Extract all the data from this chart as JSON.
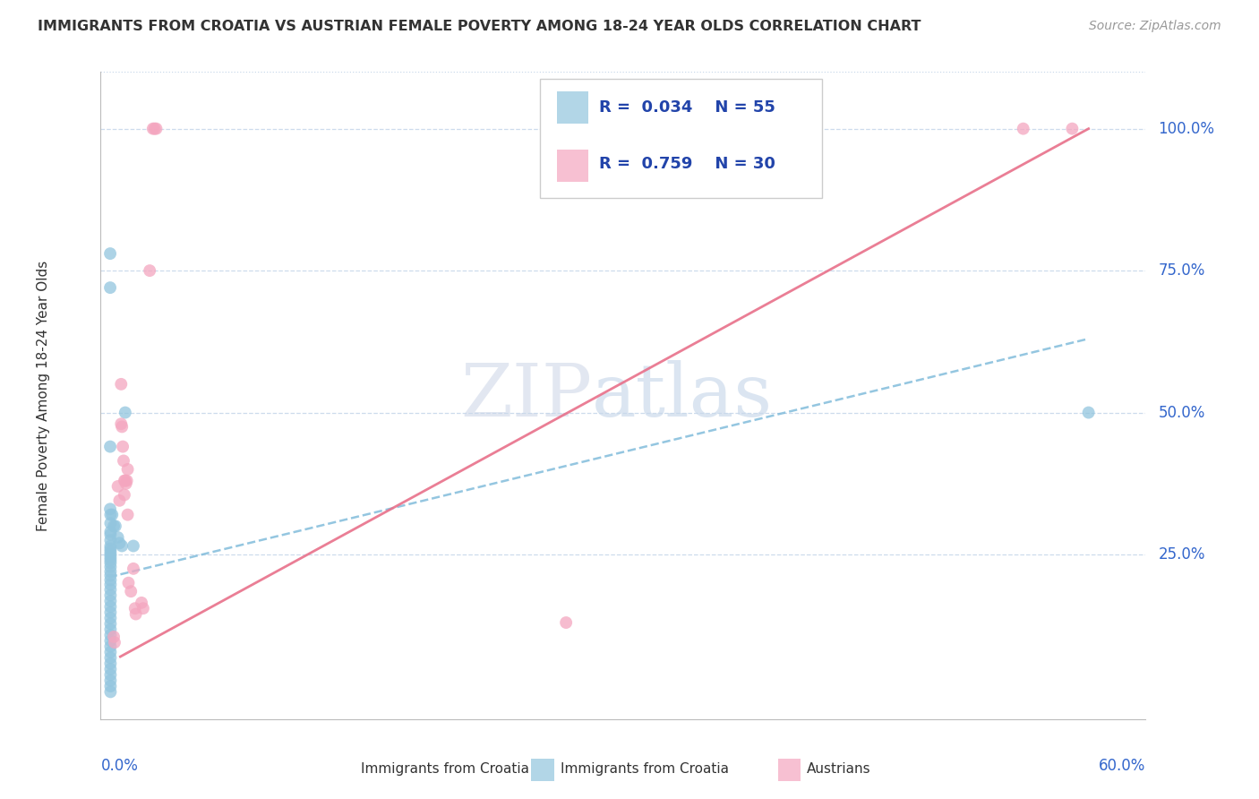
{
  "title": "IMMIGRANTS FROM CROATIA VS AUSTRIAN FEMALE POVERTY AMONG 18-24 YEAR OLDS CORRELATION CHART",
  "source": "Source: ZipAtlas.com",
  "xlabel_bottom_left": "0.0%",
  "xlabel_bottom_right": "60.0%",
  "ylabel": "Female Poverty Among 18-24 Year Olds",
  "ytick_labels": [
    "100.0%",
    "75.0%",
    "50.0%",
    "25.0%"
  ],
  "ytick_values": [
    1.0,
    0.75,
    0.5,
    0.25
  ],
  "watermark_zip": "ZIP",
  "watermark_atlas": "atlas",
  "blue_color": "#92c5de",
  "pink_color": "#f4a6bf",
  "blue_line_color": "#7ab8d9",
  "pink_line_color": "#e8708a",
  "legend_text_color": "#3355aa",
  "legend_label_color": "#222222",
  "blue_scatter": [
    [
      0.0008,
      0.78
    ],
    [
      0.0008,
      0.72
    ],
    [
      0.0008,
      0.44
    ],
    [
      0.0008,
      0.33
    ],
    [
      0.001,
      0.32
    ],
    [
      0.001,
      0.305
    ],
    [
      0.001,
      0.29
    ],
    [
      0.001,
      0.285
    ],
    [
      0.001,
      0.275
    ],
    [
      0.001,
      0.265
    ],
    [
      0.001,
      0.26
    ],
    [
      0.001,
      0.255
    ],
    [
      0.001,
      0.25
    ],
    [
      0.001,
      0.245
    ],
    [
      0.001,
      0.24
    ],
    [
      0.001,
      0.235
    ],
    [
      0.001,
      0.228
    ],
    [
      0.001,
      0.22
    ],
    [
      0.001,
      0.213
    ],
    [
      0.001,
      0.205
    ],
    [
      0.001,
      0.197
    ],
    [
      0.001,
      0.188
    ],
    [
      0.001,
      0.178
    ],
    [
      0.001,
      0.168
    ],
    [
      0.001,
      0.158
    ],
    [
      0.001,
      0.148
    ],
    [
      0.001,
      0.138
    ],
    [
      0.001,
      0.128
    ],
    [
      0.001,
      0.118
    ],
    [
      0.001,
      0.108
    ],
    [
      0.001,
      0.098
    ],
    [
      0.001,
      0.088
    ],
    [
      0.001,
      0.078
    ],
    [
      0.001,
      0.068
    ],
    [
      0.001,
      0.058
    ],
    [
      0.001,
      0.048
    ],
    [
      0.001,
      0.038
    ],
    [
      0.001,
      0.028
    ],
    [
      0.001,
      0.018
    ],
    [
      0.001,
      0.008
    ],
    [
      0.002,
      0.32
    ],
    [
      0.003,
      0.3
    ],
    [
      0.004,
      0.3
    ],
    [
      0.0055,
      0.28
    ],
    [
      0.0065,
      0.27
    ],
    [
      0.008,
      0.265
    ],
    [
      0.01,
      0.5
    ],
    [
      0.015,
      0.265
    ],
    [
      0.6,
      0.5
    ]
  ],
  "pink_scatter": [
    [
      0.003,
      0.105
    ],
    [
      0.0035,
      0.095
    ],
    [
      0.0055,
      0.37
    ],
    [
      0.0065,
      0.345
    ],
    [
      0.0075,
      0.55
    ],
    [
      0.0075,
      0.48
    ],
    [
      0.008,
      0.475
    ],
    [
      0.0085,
      0.44
    ],
    [
      0.009,
      0.415
    ],
    [
      0.0095,
      0.38
    ],
    [
      0.0095,
      0.355
    ],
    [
      0.01,
      0.38
    ],
    [
      0.0105,
      0.375
    ],
    [
      0.011,
      0.38
    ],
    [
      0.0115,
      0.4
    ],
    [
      0.0115,
      0.32
    ],
    [
      0.012,
      0.2
    ],
    [
      0.0135,
      0.185
    ],
    [
      0.015,
      0.225
    ],
    [
      0.016,
      0.155
    ],
    [
      0.0165,
      0.145
    ],
    [
      0.02,
      0.165
    ],
    [
      0.021,
      0.155
    ],
    [
      0.025,
      0.75
    ],
    [
      0.027,
      1.0
    ],
    [
      0.028,
      1.0
    ],
    [
      0.029,
      1.0
    ],
    [
      0.28,
      0.13
    ],
    [
      0.56,
      1.0
    ],
    [
      0.59,
      1.0
    ]
  ],
  "blue_trend_x": [
    0.0,
    0.6
  ],
  "blue_trend_y": [
    0.21,
    0.63
  ],
  "pink_trend_x": [
    0.007,
    0.6
  ],
  "pink_trend_y": [
    0.07,
    1.0
  ],
  "xlim": [
    -0.005,
    0.635
  ],
  "ylim": [
    -0.04,
    1.1
  ],
  "grid_color": "#c8d8ea",
  "top_border_color": "#c8d8ea"
}
